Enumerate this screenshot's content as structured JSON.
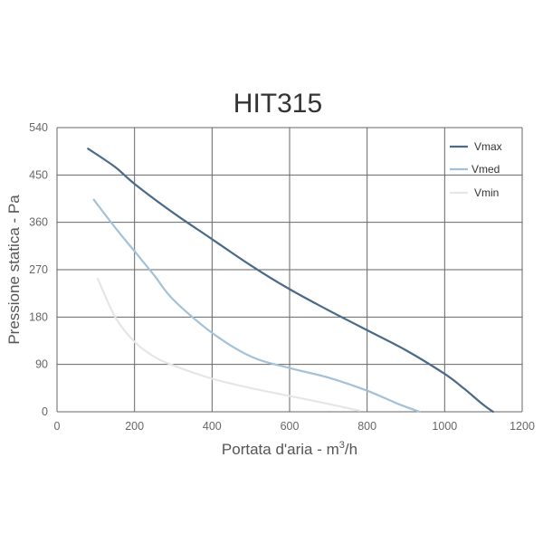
{
  "chart_data": {
    "type": "line",
    "title": "HIT315",
    "xlabel": "Portata d'aria - m",
    "xlabel_sup": "3",
    "xlabel_suffix": "/h",
    "ylabel": "Pressione statica - Pa",
    "xlim": [
      0,
      1200
    ],
    "ylim": [
      0,
      540
    ],
    "x_ticks": [
      0,
      200,
      400,
      600,
      800,
      1000,
      1200
    ],
    "x_tick_labels": [
      "0",
      "200",
      "400",
      "600",
      "800",
      "1000",
      "1200"
    ],
    "y_ticks": [
      0,
      90,
      180,
      270,
      360,
      450,
      540
    ],
    "y_tick_labels": [
      "0",
      "90",
      "180",
      "270",
      "360",
      "450",
      "540"
    ],
    "grid": true,
    "legend_position": "top-right",
    "series": [
      {
        "name": "Vmax",
        "color": "#4a6a87",
        "points": [
          [
            80,
            500
          ],
          [
            150,
            465
          ],
          [
            200,
            433
          ],
          [
            300,
            378
          ],
          [
            400,
            328
          ],
          [
            500,
            278
          ],
          [
            600,
            233
          ],
          [
            700,
            193
          ],
          [
            800,
            155
          ],
          [
            900,
            117
          ],
          [
            1000,
            72
          ],
          [
            1050,
            44
          ],
          [
            1100,
            13
          ],
          [
            1125,
            0
          ]
        ]
      },
      {
        "name": "Vmed",
        "color": "#a3c1d8",
        "points": [
          [
            95,
            403
          ],
          [
            150,
            350
          ],
          [
            200,
            305
          ],
          [
            250,
            260
          ],
          [
            300,
            213
          ],
          [
            400,
            150
          ],
          [
            500,
            105
          ],
          [
            600,
            83
          ],
          [
            700,
            65
          ],
          [
            800,
            40
          ],
          [
            880,
            15
          ],
          [
            935,
            0
          ]
        ]
      },
      {
        "name": "Vmin",
        "color": "#e6e6e6",
        "points": [
          [
            105,
            253
          ],
          [
            150,
            180
          ],
          [
            200,
            133
          ],
          [
            250,
            105
          ],
          [
            300,
            88
          ],
          [
            400,
            63
          ],
          [
            500,
            45
          ],
          [
            600,
            30
          ],
          [
            700,
            15
          ],
          [
            780,
            2
          ]
        ]
      }
    ]
  }
}
